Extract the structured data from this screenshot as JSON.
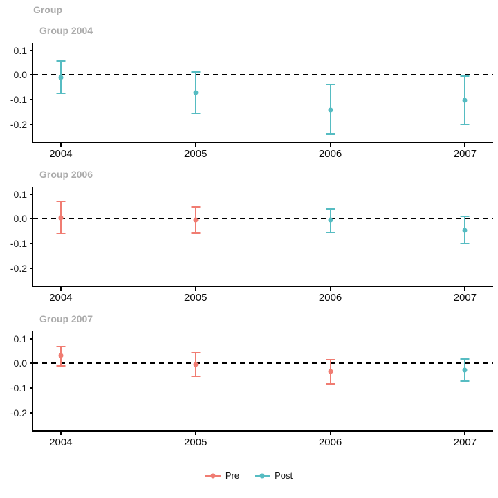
{
  "title": "Group",
  "colors": {
    "pre": "#F07C72",
    "post": "#56BCC2",
    "panel_title": "#ABABAB",
    "axis": "#000000",
    "ref_line": "#000000"
  },
  "legend": {
    "items": [
      {
        "label": "Pre",
        "color": "#F07C72"
      },
      {
        "label": "Post",
        "color": "#56BCC2"
      }
    ]
  },
  "chart_data": {
    "type": "scatter",
    "subtype": "pointrange-error-bars-faceted",
    "title": "Group",
    "xlabel": "",
    "ylabel": "",
    "x_ticks": [
      "2004",
      "2005",
      "2006",
      "2007"
    ],
    "y_ticks": [
      {
        "v": 0.1,
        "label": "0.1"
      },
      {
        "v": 0.0,
        "label": "0.0"
      },
      {
        "v": -0.1,
        "label": "-0.1"
      },
      {
        "v": -0.2,
        "label": "-0.2"
      }
    ],
    "ylim": [
      -0.27,
      0.13
    ],
    "ref_line_y": 0.0,
    "grid": false,
    "legend_position": "bottom",
    "x_positions_pct": [
      6.0,
      35.3,
      64.6,
      93.9
    ],
    "facets": [
      {
        "title": "Group 2004",
        "points": [
          {
            "year": "2004",
            "group": "Post",
            "est": -0.01,
            "lo": -0.073,
            "hi": 0.056
          },
          {
            "year": "2005",
            "group": "Post",
            "est": -0.07,
            "lo": -0.155,
            "hi": 0.013
          },
          {
            "year": "2006",
            "group": "Post",
            "est": -0.14,
            "lo": -0.24,
            "hi": -0.039
          },
          {
            "year": "2007",
            "group": "Post",
            "est": -0.102,
            "lo": -0.2,
            "hi": -0.005
          }
        ]
      },
      {
        "title": "Group 2006",
        "points": [
          {
            "year": "2004",
            "group": "Pre",
            "est": 0.005,
            "lo": -0.06,
            "hi": 0.072
          },
          {
            "year": "2005",
            "group": "Pre",
            "est": -0.004,
            "lo": -0.058,
            "hi": 0.05
          },
          {
            "year": "2006",
            "group": "Post",
            "est": -0.005,
            "lo": -0.056,
            "hi": 0.041
          },
          {
            "year": "2007",
            "group": "Post",
            "est": -0.045,
            "lo": -0.098,
            "hi": 0.011
          }
        ]
      },
      {
        "title": "Group 2007",
        "points": [
          {
            "year": "2004",
            "group": "Pre",
            "est": 0.031,
            "lo": -0.01,
            "hi": 0.069
          },
          {
            "year": "2005",
            "group": "Pre",
            "est": -0.004,
            "lo": -0.051,
            "hi": 0.042
          },
          {
            "year": "2006",
            "group": "Pre",
            "est": -0.033,
            "lo": -0.082,
            "hi": 0.016
          },
          {
            "year": "2007",
            "group": "Post",
            "est": -0.027,
            "lo": -0.072,
            "hi": 0.017
          }
        ]
      }
    ]
  }
}
